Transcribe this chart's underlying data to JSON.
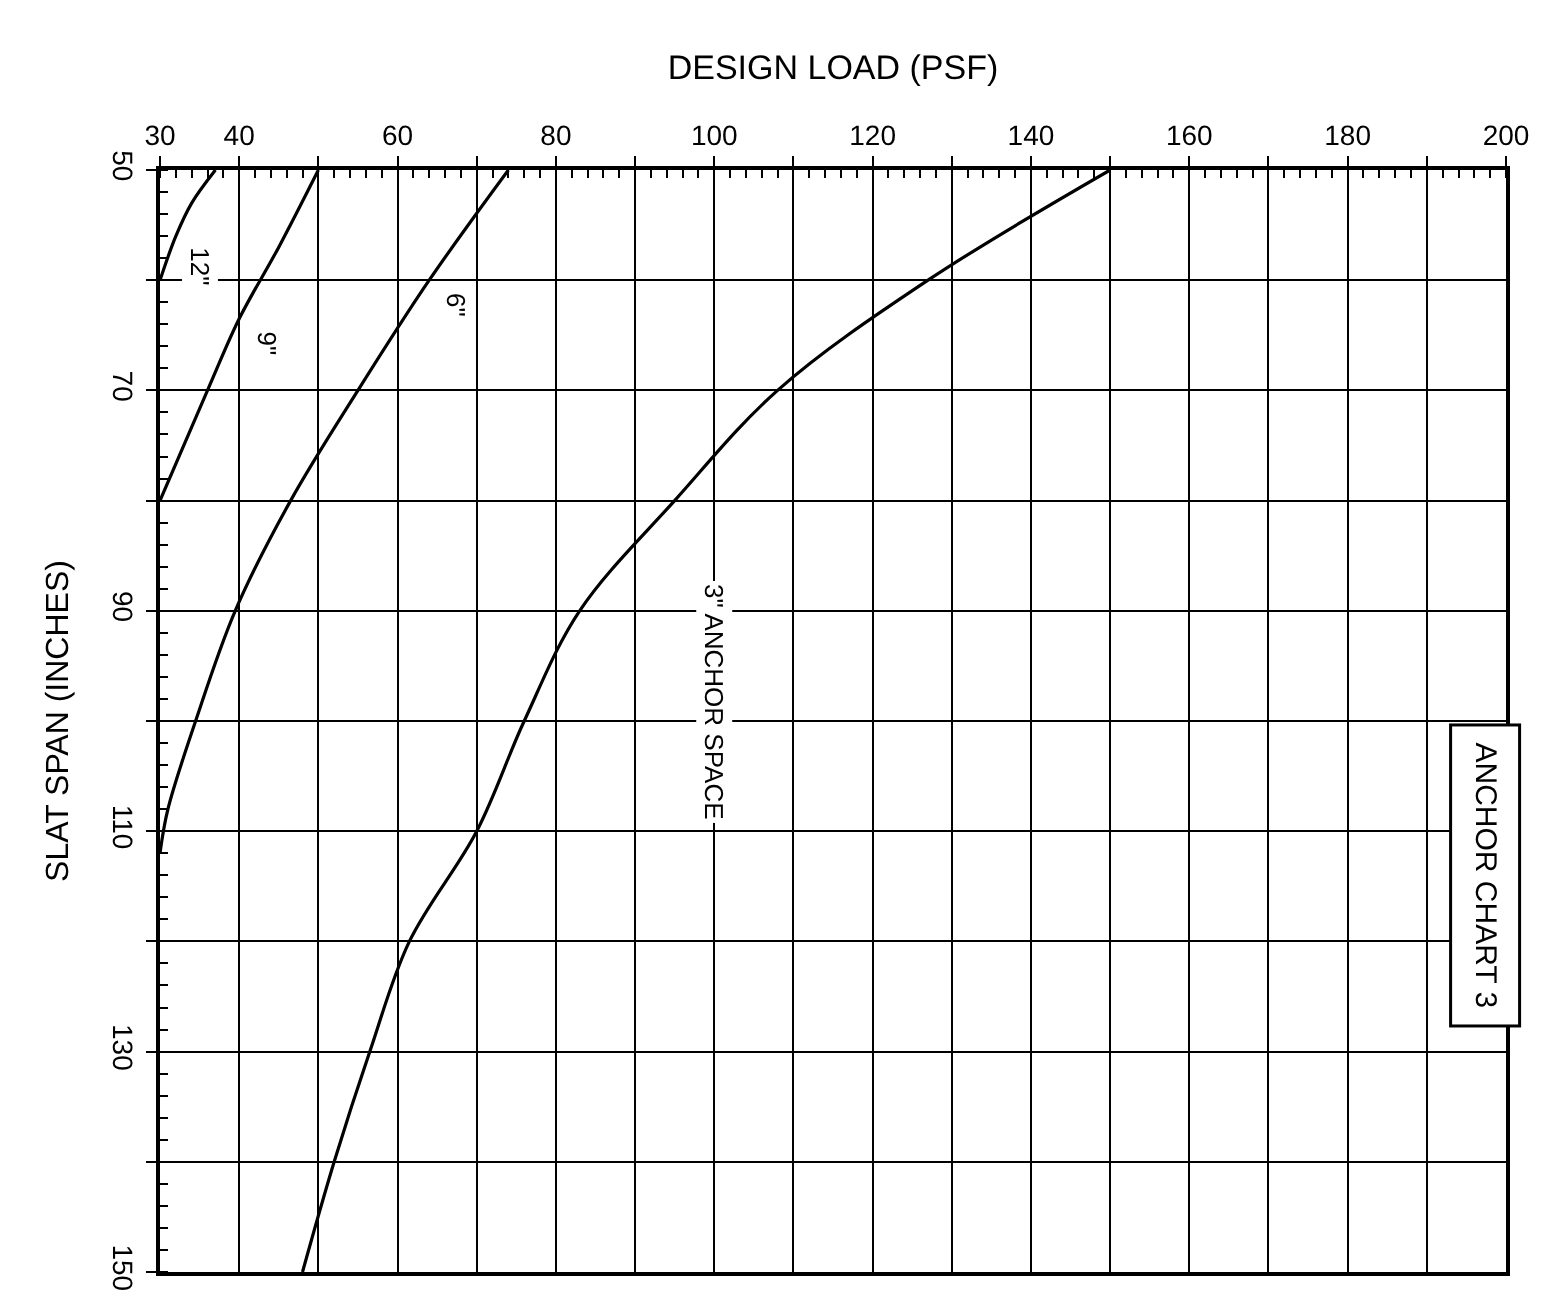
{
  "chart_data": {
    "type": "line",
    "xlabel": "DESIGN LOAD (PSF)",
    "ylabel": "SLAT SPAN (INCHES)",
    "xlim": [
      30,
      200
    ],
    "ylim": [
      150,
      50
    ],
    "xticks": [
      30,
      40,
      {
        "value": 50,
        "label": null
      },
      60,
      {
        "value": 70,
        "label": null
      },
      80,
      {
        "value": 90,
        "label": null
      },
      100,
      {
        "value": 110,
        "label": null
      },
      120,
      {
        "value": 130,
        "label": null
      },
      140,
      {
        "value": 150,
        "label": null
      },
      160,
      {
        "value": 170,
        "label": null
      },
      180,
      {
        "value": 190,
        "label": null
      },
      200
    ],
    "yticks": [
      50,
      {
        "value": 60,
        "label": null
      },
      70,
      {
        "value": 80,
        "label": null
      },
      90,
      {
        "value": 100,
        "label": null
      },
      110,
      {
        "value": 120,
        "label": null
      },
      130,
      {
        "value": 140,
        "label": null
      },
      150
    ],
    "grid": true,
    "legend": false,
    "marker": "none",
    "line_style": "solid",
    "series": [
      {
        "name": "12\"",
        "color": "#000000",
        "x": [
          30,
          32,
          34,
          37
        ],
        "values": [
          60,
          56,
          53,
          50
        ]
      },
      {
        "name": "9\"",
        "color": "#000000",
        "x": [
          30,
          36,
          40,
          45,
          50
        ],
        "values": [
          80,
          70,
          63.5,
          57,
          50
        ]
      },
      {
        "name": "6\"",
        "color": "#000000",
        "x": [
          30,
          31,
          34.5,
          39.5,
          46.5,
          55,
          64,
          74
        ],
        "values": [
          112,
          108,
          100,
          90,
          80,
          70,
          60,
          50
        ]
      },
      {
        "name": "3\" ANCHOR SPACE",
        "color": "#000000",
        "x": [
          48,
          52,
          56.5,
          61.5,
          70,
          76,
          83,
          95,
          108,
          127,
          150
        ],
        "values": [
          150,
          140,
          130,
          120,
          110,
          100,
          90,
          80,
          70,
          60,
          50
        ]
      }
    ],
    "annotations": [
      "ANCHOR CHART 3"
    ]
  }
}
